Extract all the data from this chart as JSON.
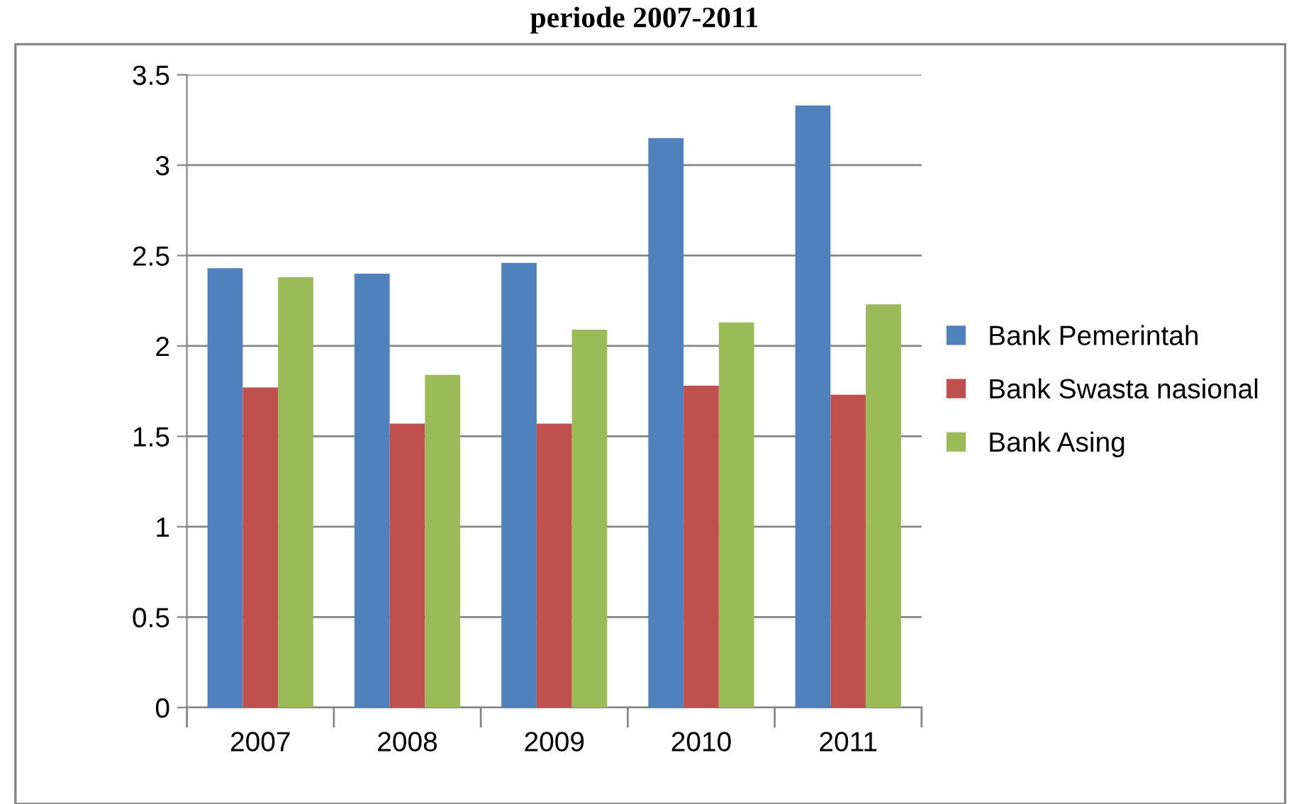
{
  "chart_data": {
    "type": "bar",
    "title": "periode 2007-2011",
    "categories": [
      "2007",
      "2008",
      "2009",
      "2010",
      "2011"
    ],
    "series": [
      {
        "name": "Bank Pemerintah",
        "color": "#4f81bd",
        "values": [
          2.43,
          2.4,
          2.46,
          3.15,
          3.33
        ]
      },
      {
        "name": "Bank Swasta nasional",
        "color": "#c0504d",
        "values": [
          1.77,
          1.57,
          1.57,
          1.78,
          1.73
        ]
      },
      {
        "name": "Bank Asing",
        "color": "#9bbb59",
        "values": [
          2.38,
          1.84,
          2.09,
          2.13,
          2.23
        ]
      }
    ],
    "ylim": [
      0,
      3.5
    ],
    "yticks": [
      0,
      0.5,
      1,
      1.5,
      2,
      2.5,
      3,
      3.5
    ],
    "grid": "y",
    "legend": "right"
  }
}
